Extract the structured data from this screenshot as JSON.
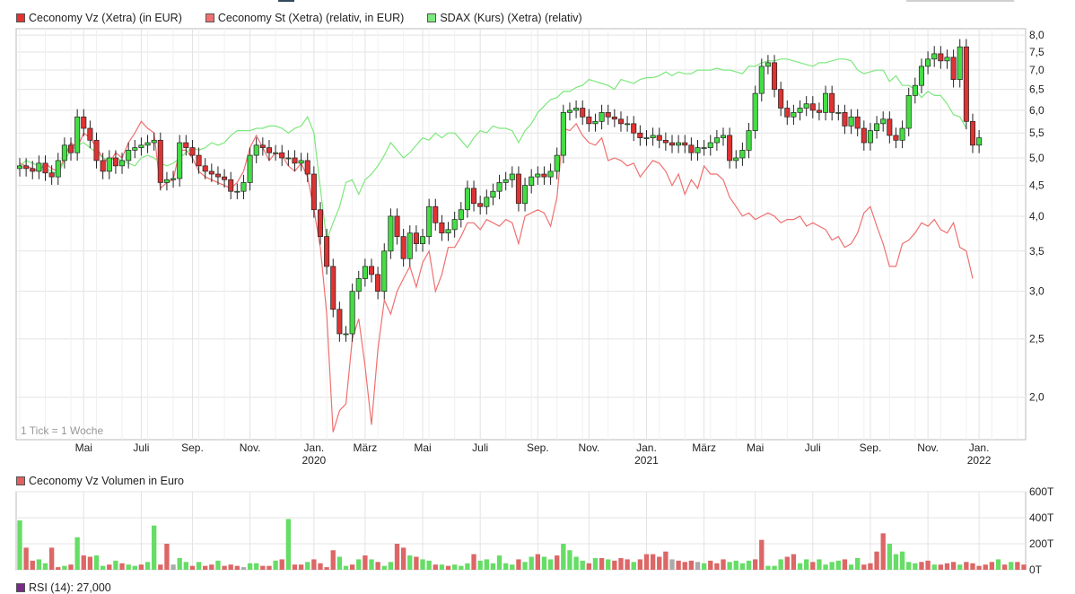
{
  "legend": {
    "items": [
      {
        "label": "Ceconomy Vz (Xetra) (in EUR)",
        "color": "#e8312f"
      },
      {
        "label": "Ceconomy St (Xetra) (relativ, in EUR)",
        "color": "#f07070"
      },
      {
        "label": "SDAX (Kurs) (Xetra) (relativ)",
        "color": "#7de87d"
      }
    ]
  },
  "tick_note": "1 Tick = 1 Woche",
  "volume_legend": {
    "label": "Ceconomy Vz Volumen in Euro",
    "color": "#e06060"
  },
  "rsi_legend": {
    "label": "RSI (14): 27,000",
    "color": "#7a2a8a"
  },
  "colors": {
    "up": "#44dd44",
    "down": "#dd3333",
    "grid": "#e3e3e3",
    "vol_up": "#66dd66",
    "vol_down": "#dd6666",
    "vol_neutral": "#aaaaaa"
  },
  "chart_data": [
    {
      "type": "candlestick",
      "title": "",
      "y_scale": "log",
      "ylim": [
        1.7,
        8.2
      ],
      "y_ticks": [
        "8,0",
        "7,5",
        "7,0",
        "6,5",
        "6,0",
        "5,5",
        "5,0",
        "4,5",
        "4,0",
        "3,5",
        "3,0",
        "2,5",
        "2,0"
      ],
      "y_tick_values": [
        8.0,
        7.5,
        7.0,
        6.5,
        6.0,
        5.5,
        5.0,
        4.5,
        4.0,
        3.5,
        3.0,
        2.5,
        2.0
      ],
      "x_tick_labels": [
        "Mai",
        "Juli",
        "Sep.",
        "Nov.",
        "Jan.",
        "März",
        "Mai",
        "Juli",
        "Sep.",
        "Nov.",
        "Jan.",
        "März",
        "Mai",
        "Juli",
        "Sep.",
        "Nov.",
        "Jan."
      ],
      "x_tick_weeks": [
        10,
        19,
        27,
        36,
        46,
        54,
        63,
        72,
        81,
        89,
        98,
        107,
        115,
        124,
        133,
        142,
        150
      ],
      "year_labels": [
        {
          "label": "2020",
          "week": 46
        },
        {
          "label": "2021",
          "week": 98
        },
        {
          "label": "2022",
          "week": 150
        }
      ],
      "weeks": 158,
      "series": [
        {
          "name": "Ceconomy Vz (Xetra) (in EUR)",
          "type": "candlestick",
          "close": [
            4.85,
            4.8,
            4.75,
            4.9,
            4.72,
            4.65,
            4.95,
            5.25,
            5.1,
            5.85,
            5.6,
            5.35,
            4.95,
            4.75,
            5.0,
            4.85,
            4.95,
            5.15,
            5.2,
            5.25,
            5.3,
            5.35,
            4.55,
            4.6,
            4.62,
            5.3,
            5.2,
            5.05,
            4.85,
            4.75,
            4.7,
            4.65,
            4.6,
            4.4,
            4.4,
            4.55,
            5.05,
            5.25,
            5.2,
            5.1,
            5.1,
            5.0,
            5.0,
            4.9,
            4.95,
            4.7,
            4.1,
            3.7,
            3.3,
            2.8,
            2.55,
            2.55,
            3.0,
            3.15,
            3.3,
            3.2,
            3.0,
            3.5,
            4.0,
            3.7,
            3.4,
            3.75,
            3.6,
            3.7,
            4.15,
            3.9,
            3.75,
            3.8,
            3.95,
            4.1,
            4.45,
            4.2,
            4.15,
            4.3,
            4.4,
            4.55,
            4.6,
            4.7,
            4.2,
            4.5,
            4.65,
            4.7,
            4.65,
            4.75,
            5.05,
            5.95,
            6.0,
            6.05,
            5.85,
            5.7,
            5.75,
            5.95,
            5.85,
            5.8,
            5.7,
            5.7,
            5.5,
            5.4,
            5.4,
            5.45,
            5.35,
            5.3,
            5.25,
            5.3,
            5.25,
            5.1,
            5.2,
            5.2,
            5.3,
            5.4,
            5.45,
            4.95,
            5.0,
            5.15,
            5.55,
            6.4,
            7.1,
            7.2,
            6.5,
            6.05,
            5.85,
            5.95,
            6.05,
            6.15,
            6.0,
            5.95,
            6.4,
            5.95,
            5.95,
            5.65,
            5.85,
            5.6,
            5.3,
            5.55,
            5.7,
            5.8,
            5.45,
            5.35,
            5.6,
            6.35,
            6.6,
            7.1,
            7.3,
            7.45,
            7.25,
            7.35,
            6.75,
            7.65,
            5.75,
            5.25,
            5.4
          ],
          "open": [
            4.8,
            4.85,
            4.8,
            4.75,
            4.9,
            4.72,
            4.65,
            4.95,
            5.25,
            5.1,
            5.85,
            5.6,
            5.35,
            4.95,
            4.75,
            5.0,
            4.85,
            4.95,
            5.15,
            5.2,
            5.25,
            5.3,
            5.35,
            4.55,
            4.6,
            4.62,
            5.3,
            5.2,
            5.05,
            4.85,
            4.75,
            4.7,
            4.65,
            4.6,
            4.4,
            4.4,
            4.55,
            5.05,
            5.25,
            5.2,
            5.1,
            5.1,
            5.0,
            5.0,
            4.9,
            4.95,
            4.7,
            4.1,
            3.7,
            3.3,
            2.8,
            2.55,
            2.55,
            3.0,
            3.15,
            3.3,
            3.2,
            3.0,
            3.5,
            4.0,
            3.7,
            3.4,
            3.75,
            3.6,
            3.7,
            4.15,
            3.9,
            3.75,
            3.8,
            3.95,
            4.1,
            4.45,
            4.2,
            4.15,
            4.3,
            4.4,
            4.55,
            4.6,
            4.7,
            4.2,
            4.5,
            4.65,
            4.7,
            4.65,
            4.75,
            5.05,
            5.95,
            6.0,
            6.05,
            5.85,
            5.7,
            5.75,
            5.95,
            5.85,
            5.8,
            5.7,
            5.7,
            5.5,
            5.4,
            5.4,
            5.45,
            5.35,
            5.3,
            5.25,
            5.3,
            5.25,
            5.1,
            5.2,
            5.2,
            5.3,
            5.4,
            5.45,
            4.95,
            5.0,
            5.15,
            5.55,
            6.4,
            7.1,
            7.2,
            6.5,
            6.05,
            5.85,
            5.95,
            6.05,
            6.15,
            6.0,
            5.95,
            6.4,
            5.95,
            5.95,
            5.65,
            5.85,
            5.6,
            5.3,
            5.55,
            5.7,
            5.8,
            5.45,
            5.35,
            5.6,
            6.35,
            6.6,
            7.1,
            7.3,
            7.45,
            7.25,
            7.35,
            6.75,
            7.65,
            5.75,
            5.25
          ]
        },
        {
          "name": "Ceconomy St (Xetra) (relativ, in EUR)",
          "type": "line",
          "values": [
            4.9,
            4.85,
            4.8,
            4.75,
            4.9,
            4.8,
            4.75,
            5.0,
            5.3,
            5.2,
            5.5,
            5.4,
            5.2,
            5.0,
            4.9,
            5.1,
            5.0,
            5.3,
            5.5,
            5.75,
            5.6,
            5.5,
            4.45,
            4.55,
            4.6,
            5.15,
            5.15,
            5.0,
            4.75,
            4.65,
            4.6,
            4.55,
            4.5,
            4.45,
            4.55,
            4.75,
            5.2,
            5.45,
            5.2,
            4.95,
            5.1,
            5.05,
            4.85,
            4.75,
            4.9,
            4.65,
            4.1,
            3.55,
            2.75,
            1.75,
            1.9,
            1.95,
            2.5,
            2.7,
            2.25,
            1.8,
            2.4,
            2.9,
            2.75,
            3.0,
            3.15,
            3.3,
            3.05,
            3.35,
            3.5,
            3.0,
            3.2,
            3.55,
            3.55,
            3.7,
            3.9,
            3.9,
            3.8,
            3.95,
            3.9,
            3.85,
            3.95,
            3.9,
            3.6,
            4.0,
            4.05,
            4.1,
            4.05,
            3.85,
            4.3,
            5.6,
            5.55,
            5.7,
            5.45,
            5.3,
            5.25,
            5.4,
            4.95,
            5.0,
            4.95,
            4.85,
            4.9,
            4.65,
            4.8,
            4.95,
            4.9,
            4.75,
            4.5,
            4.7,
            4.35,
            4.6,
            4.45,
            4.85,
            4.7,
            4.7,
            4.6,
            4.3,
            4.15,
            4.0,
            4.05,
            3.95,
            4.0,
            4.05,
            4.0,
            3.9,
            3.95,
            3.95,
            4.0,
            3.85,
            3.9,
            3.85,
            3.8,
            3.65,
            3.7,
            3.55,
            3.6,
            3.75,
            4.05,
            4.15,
            3.85,
            3.6,
            3.3,
            3.3,
            3.6,
            3.65,
            3.75,
            3.9,
            3.85,
            3.95,
            3.8,
            3.75,
            3.9,
            3.55,
            3.5,
            3.15
          ]
        },
        {
          "name": "SDAX (Kurs) (Xetra) (relativ)",
          "type": "line",
          "values": [
            4.85,
            4.95,
            4.9,
            4.85,
            4.8,
            4.75,
            4.7,
            4.95,
            5.15,
            5.25,
            5.3,
            5.2,
            5.1,
            5.0,
            4.95,
            5.0,
            4.95,
            4.9,
            4.85,
            5.0,
            5.05,
            5.0,
            4.9,
            4.85,
            4.9,
            5.0,
            5.1,
            5.2,
            5.15,
            5.2,
            5.3,
            5.25,
            5.3,
            5.45,
            5.55,
            5.55,
            5.55,
            5.6,
            5.6,
            5.65,
            5.65,
            5.6,
            5.5,
            5.6,
            5.65,
            5.85,
            5.5,
            4.45,
            3.65,
            3.9,
            4.15,
            4.55,
            4.6,
            4.35,
            4.6,
            4.7,
            4.85,
            5.05,
            5.3,
            5.15,
            5.0,
            5.1,
            5.25,
            5.4,
            5.35,
            5.5,
            5.4,
            5.5,
            5.5,
            5.35,
            5.2,
            5.4,
            5.55,
            5.5,
            5.65,
            5.6,
            5.6,
            5.55,
            5.3,
            5.55,
            5.7,
            5.95,
            6.1,
            6.25,
            6.3,
            6.45,
            6.45,
            6.55,
            6.6,
            6.75,
            6.7,
            6.65,
            6.6,
            6.5,
            6.75,
            6.7,
            6.65,
            6.75,
            6.8,
            6.8,
            6.85,
            6.95,
            6.85,
            6.95,
            6.9,
            6.9,
            7.0,
            7.0,
            7.0,
            7.05,
            7.0,
            7.0,
            6.95,
            6.9,
            7.1,
            7.1,
            7.2,
            7.25,
            7.25,
            7.3,
            7.3,
            7.25,
            7.2,
            7.15,
            7.1,
            7.2,
            7.2,
            7.25,
            7.3,
            7.3,
            7.25,
            7.0,
            6.9,
            6.95,
            7.0,
            7.0,
            6.7,
            6.85,
            6.6,
            6.6,
            6.5,
            6.3,
            6.45,
            6.35,
            6.35,
            6.15,
            5.9,
            5.85,
            5.6
          ]
        }
      ]
    },
    {
      "type": "bar",
      "title": "Ceconomy Vz Volumen in Euro",
      "ylim": [
        0,
        600
      ],
      "y_ticks": [
        "600T",
        "400T",
        "200T",
        "0T"
      ],
      "y_tick_values": [
        600,
        400,
        200,
        0
      ],
      "unit": "T",
      "values": [
        380,
        170,
        70,
        80,
        50,
        170,
        20,
        30,
        40,
        250,
        110,
        100,
        110,
        30,
        40,
        70,
        50,
        40,
        30,
        40,
        60,
        340,
        40,
        200,
        40,
        90,
        60,
        30,
        60,
        30,
        40,
        70,
        30,
        40,
        30,
        20,
        50,
        50,
        30,
        30,
        70,
        80,
        390,
        40,
        40,
        60,
        80,
        50,
        20,
        150,
        100,
        30,
        40,
        80,
        110,
        80,
        60,
        30,
        60,
        200,
        170,
        110,
        100,
        80,
        70,
        40,
        40,
        30,
        40,
        30,
        50,
        120,
        70,
        80,
        50,
        110,
        50,
        40,
        80,
        60,
        100,
        120,
        100,
        80,
        110,
        200,
        150,
        100,
        70,
        50,
        90,
        90,
        80,
        70,
        90,
        80,
        60,
        80,
        120,
        120,
        100,
        140,
        80,
        70,
        60,
        70,
        60,
        50,
        70,
        50,
        80,
        60,
        70,
        50,
        70,
        80,
        230,
        30,
        30,
        80,
        100,
        120,
        50,
        80,
        60,
        80,
        40,
        60,
        70,
        80,
        40,
        90,
        40,
        50,
        140,
        280,
        200,
        120,
        140,
        60,
        50,
        60,
        70,
        40,
        40,
        50,
        60,
        40,
        60,
        50,
        30,
        40,
        60,
        80,
        40,
        60,
        60,
        40
      ],
      "direction": [
        "u",
        "d",
        "d",
        "u",
        "u",
        "d",
        "d",
        "u",
        "d",
        "u",
        "d",
        "d",
        "u",
        "u",
        "d",
        "u",
        "d",
        "u",
        "u",
        "d",
        "u",
        "u",
        "d",
        "d",
        "n",
        "u",
        "u",
        "d",
        "u",
        "d",
        "d",
        "u",
        "d",
        "d",
        "d",
        "n",
        "u",
        "u",
        "d",
        "d",
        "u",
        "d",
        "u",
        "d",
        "d",
        "u",
        "d",
        "d",
        "d",
        "d",
        "u",
        "u",
        "d",
        "u",
        "d",
        "u",
        "d",
        "u",
        "u",
        "d",
        "d",
        "u",
        "d",
        "u",
        "u",
        "d",
        "u",
        "d",
        "u",
        "u",
        "u",
        "d",
        "u",
        "u",
        "u",
        "u",
        "u",
        "u",
        "d",
        "u",
        "u",
        "d",
        "u",
        "u",
        "d",
        "u",
        "u",
        "u",
        "u",
        "d",
        "u",
        "d",
        "u",
        "d",
        "d",
        "d",
        "u",
        "d",
        "d",
        "d",
        "d",
        "d",
        "n",
        "d",
        "d",
        "d",
        "n",
        "u",
        "d",
        "d",
        "d",
        "u",
        "u",
        "u",
        "u",
        "d",
        "d",
        "u",
        "u",
        "u",
        "d",
        "d",
        "u",
        "u",
        "d",
        "u",
        "u",
        "u",
        "u",
        "d",
        "u",
        "u",
        "d",
        "d",
        "d",
        "d",
        "u",
        "u",
        "u",
        "u",
        "u",
        "d",
        "d",
        "u",
        "d",
        "d",
        "d",
        "u",
        "d",
        "d",
        "d",
        "d",
        "d",
        "u",
        "d",
        "u",
        "d",
        "d"
      ]
    }
  ]
}
